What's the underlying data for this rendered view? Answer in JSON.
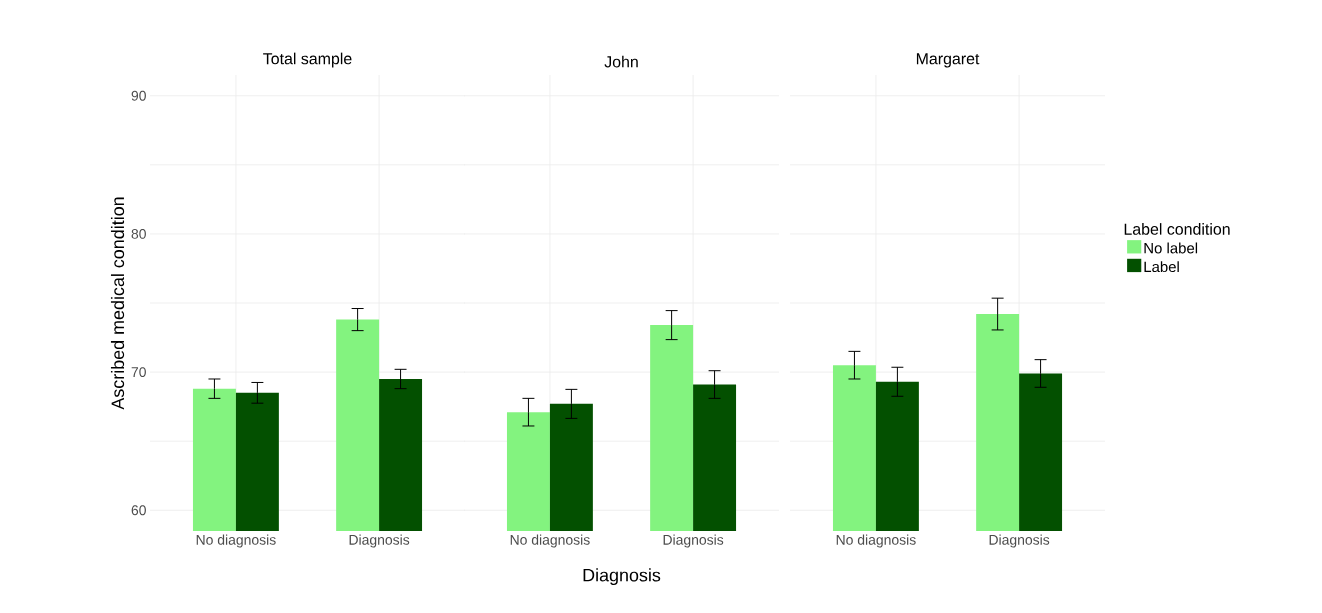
{
  "chart_data": [
    {
      "type": "bar",
      "title": "Total sample",
      "ylabel": "Ascribed medical condition",
      "categories": [
        "No diagnosis",
        "Diagnosis"
      ],
      "series": [
        {
          "color": "#83f37f",
          "values": [
            68.8,
            73.8
          ],
          "errors": [
            0.7,
            0.8
          ]
        },
        {
          "color": "#035000",
          "values": [
            68.5,
            69.5
          ],
          "errors": [
            0.75,
            0.7
          ]
        }
      ],
      "ylim": [
        58.5,
        91.5
      ],
      "yticks": [
        60,
        {
          "value": 65,
          "label": null
        },
        70,
        {
          "value": 75,
          "label": null
        },
        80,
        {
          "value": 85,
          "label": null
        },
        90
      ],
      "grid": true
    },
    {
      "type": "bar",
      "title": "John",
      "xlabel": "Diagnosis",
      "categories": [
        "No diagnosis",
        "Diagnosis"
      ],
      "series": [
        {
          "color": "#83f37f",
          "values": [
            67.1,
            73.4
          ],
          "errors": [
            1.0,
            1.05
          ]
        },
        {
          "color": "#035000",
          "values": [
            67.7,
            69.1
          ],
          "errors": [
            1.05,
            1.0
          ]
        }
      ],
      "ylim": [
        58.5,
        91.5
      ],
      "yticks": [
        60,
        {
          "value": 65,
          "label": null
        },
        70,
        {
          "value": 75,
          "label": null
        },
        80,
        {
          "value": 85,
          "label": null
        },
        90
      ],
      "grid": true,
      "tick_labels": "x"
    },
    {
      "type": "bar",
      "title": "Margaret",
      "legend_title": "Label condition",
      "categories": [
        "No diagnosis",
        "Diagnosis"
      ],
      "series": [
        {
          "name": "No label",
          "color": "#83f37f",
          "values": [
            70.5,
            74.2
          ],
          "errors": [
            1.0,
            1.15
          ]
        },
        {
          "name": "Label",
          "color": "#035000",
          "values": [
            69.3,
            69.9
          ],
          "errors": [
            1.05,
            1.0
          ]
        }
      ],
      "ylim": [
        58.5,
        91.5
      ],
      "yticks": [
        60,
        {
          "value": 65,
          "label": null
        },
        70,
        {
          "value": 75,
          "label": null
        },
        80,
        {
          "value": 85,
          "label": null
        },
        90
      ],
      "grid": true,
      "tick_labels": "x",
      "legend": "right"
    }
  ]
}
